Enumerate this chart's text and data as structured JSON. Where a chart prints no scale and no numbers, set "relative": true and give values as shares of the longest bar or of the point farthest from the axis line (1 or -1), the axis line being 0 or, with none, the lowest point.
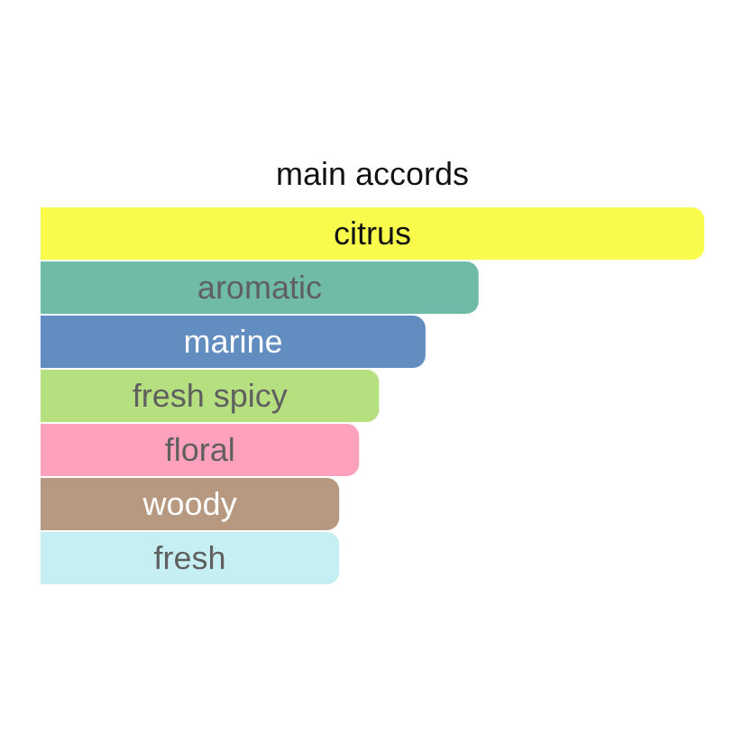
{
  "chart_data": {
    "type": "bar",
    "title": "main accords",
    "orientation": "horizontal",
    "relative": true,
    "categories": [
      "citrus",
      "aromatic",
      "marine",
      "fresh spicy",
      "floral",
      "woody",
      "fresh"
    ],
    "values": [
      1,
      0.66,
      0.58,
      0.51,
      0.48,
      0.45,
      0.45
    ],
    "colors": [
      "#f9fb4c",
      "#6fbba8",
      "#628dc0",
      "#b6df80",
      "#fea1bd",
      "#b69980",
      "#c6eff3"
    ]
  }
}
